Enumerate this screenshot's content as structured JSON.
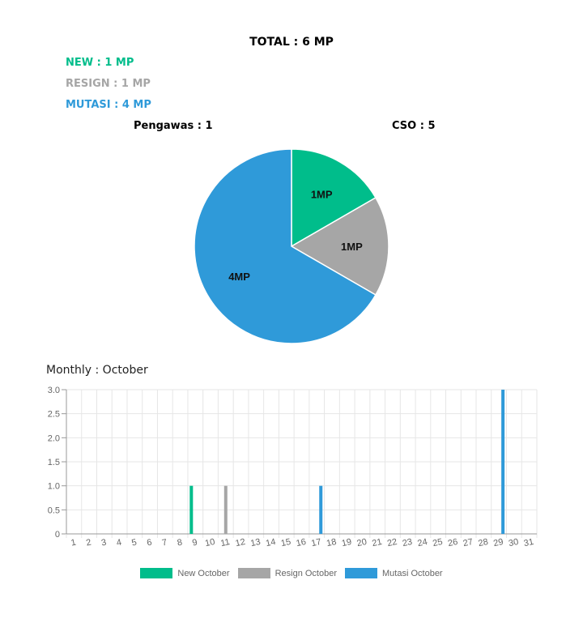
{
  "summary": {
    "total": "TOTAL : 6 MP",
    "new": "NEW : 1 MP",
    "resign": "RESIGN : 1 MP",
    "mutasi": "MUTASI : 4 MP",
    "pengawas": "Pengawas : 1",
    "cso": "CSO : 5"
  },
  "colors": {
    "new": "#00bd8b",
    "resign": "#a6a6a6",
    "mutasi": "#2f9ad9"
  },
  "monthly_title": "Monthly : October",
  "chart_data": [
    {
      "type": "pie",
      "slices": [
        {
          "label": "1MP",
          "value": 1,
          "color": "#00bd8b"
        },
        {
          "label": "1MP",
          "value": 1,
          "color": "#a6a6a6"
        },
        {
          "label": "4MP",
          "value": 4,
          "color": "#2f9ad9"
        }
      ]
    },
    {
      "type": "bar",
      "categories": [
        "1",
        "2",
        "3",
        "4",
        "5",
        "6",
        "7",
        "8",
        "9",
        "10",
        "11",
        "12",
        "13",
        "14",
        "15",
        "16",
        "17",
        "18",
        "19",
        "20",
        "21",
        "22",
        "23",
        "24",
        "25",
        "26",
        "27",
        "28",
        "29",
        "30",
        "31"
      ],
      "series": [
        {
          "name": "New October",
          "color": "#00bd8b",
          "values": [
            0,
            0,
            0,
            0,
            0,
            0,
            0,
            0,
            1,
            0,
            0,
            0,
            0,
            0,
            0,
            0,
            0,
            0,
            0,
            0,
            0,
            0,
            0,
            0,
            0,
            0,
            0,
            0,
            0,
            0,
            0
          ]
        },
        {
          "name": "Resign October",
          "color": "#a6a6a6",
          "values": [
            0,
            0,
            0,
            0,
            0,
            0,
            0,
            0,
            0,
            0,
            1,
            0,
            0,
            0,
            0,
            0,
            0,
            0,
            0,
            0,
            0,
            0,
            0,
            0,
            0,
            0,
            0,
            0,
            0,
            0,
            0
          ]
        },
        {
          "name": "Mutasi October",
          "color": "#2f9ad9",
          "values": [
            0,
            0,
            0,
            0,
            0,
            0,
            0,
            0,
            0,
            0,
            0,
            0,
            0,
            0,
            0,
            0,
            1,
            0,
            0,
            0,
            0,
            0,
            0,
            0,
            0,
            0,
            0,
            0,
            3,
            0,
            0
          ]
        }
      ],
      "ylim": [
        0,
        3
      ],
      "yticks": [
        "0",
        "0.5",
        "1.0",
        "1.5",
        "2.0",
        "2.5",
        "3.0"
      ],
      "grid": true,
      "legend": "bottom"
    }
  ]
}
